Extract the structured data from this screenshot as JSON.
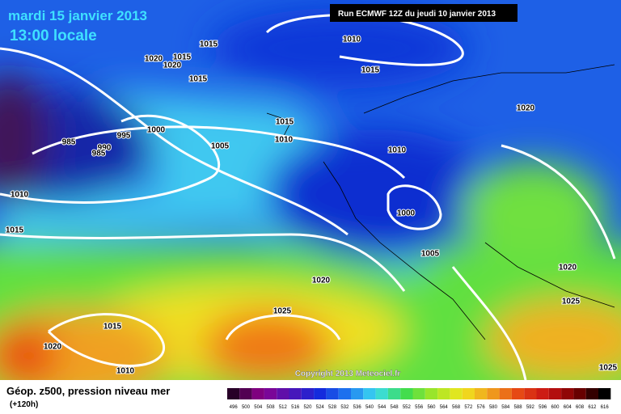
{
  "header": {
    "date": "mardi 15 janvier 2013",
    "time": "13:00 locale",
    "run": "Run ECMWF 12Z du jeudi 10 janvier 2013"
  },
  "isobar_labels": [
    "1010",
    "1015",
    "1015",
    "1020",
    "1015",
    "1020",
    "1015",
    "1020",
    "1015",
    "1000",
    "995",
    "985",
    "990",
    "985",
    "1005",
    "1010",
    "1010",
    "1010",
    "1000",
    "1015",
    "1005",
    "1020",
    "1020",
    "1025",
    "1025",
    "1015",
    "1020",
    "1010",
    "1025"
  ],
  "copyright": "Copyright 2013 Meteociel.fr",
  "legend": {
    "title": "Géop. z500, pression niveau mer",
    "lead": "(+120h)",
    "scale": [
      "496",
      "500",
      "504",
      "508",
      "512",
      "516",
      "520",
      "524",
      "528",
      "532",
      "536",
      "540",
      "544",
      "548",
      "552",
      "556",
      "560",
      "564",
      "568",
      "572",
      "576",
      "580",
      "584",
      "588",
      "592",
      "596",
      "600",
      "604",
      "608",
      "612",
      "616"
    ]
  }
}
